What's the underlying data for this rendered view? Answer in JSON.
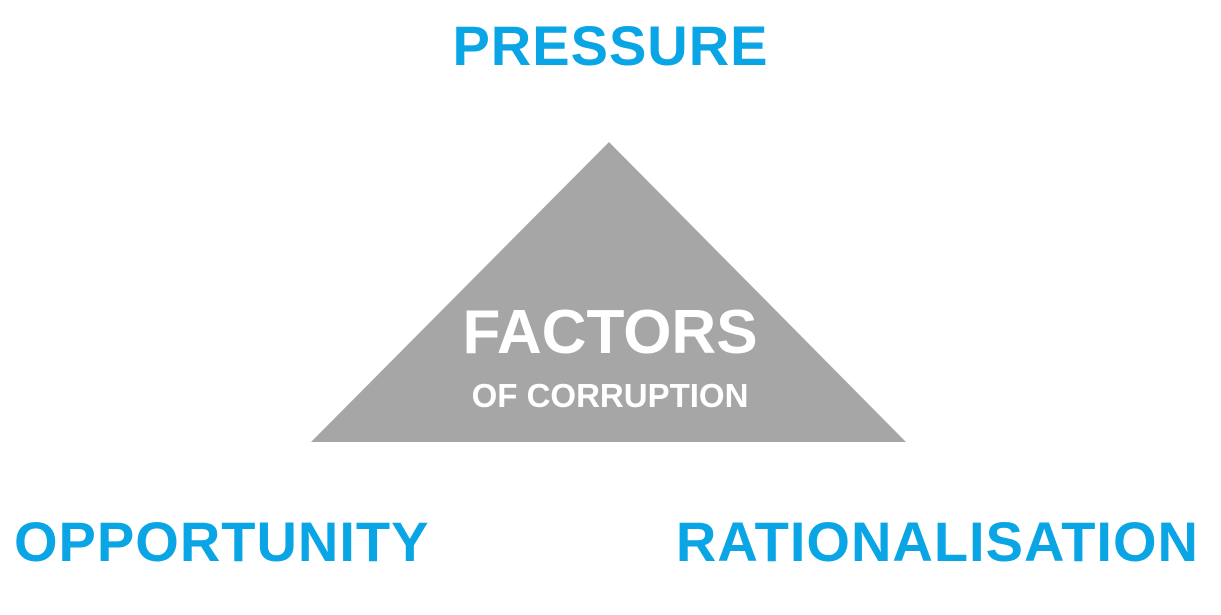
{
  "colors": {
    "accent": "#0aa5e4",
    "triangle": "#a6a6a6",
    "triangle_text": "#ffffff",
    "background": "#ffffff"
  },
  "diagram": {
    "top_label": "PRESSURE",
    "bottom_left_label": "OPPORTUNITY",
    "bottom_right_label": "RATIONALISATION",
    "center_title": "FACTORS",
    "center_subtitle": "OF CORRUPTION"
  }
}
